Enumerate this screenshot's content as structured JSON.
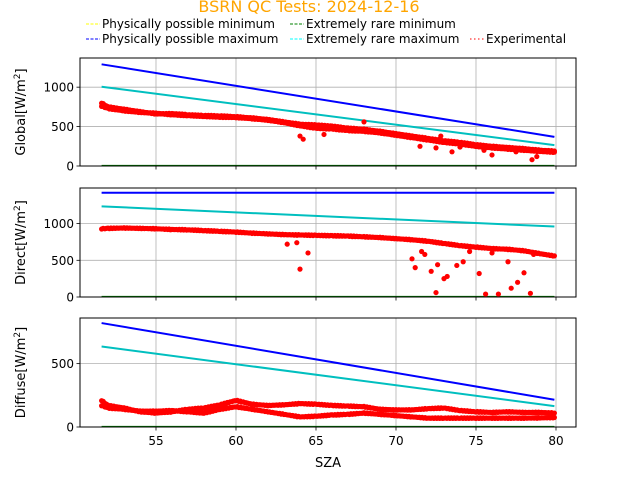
{
  "chart_data": [
    {
      "type": "line",
      "panel": "global",
      "title": "BSRN QC Tests: 2024-12-16",
      "xlabel": "",
      "ylabel": "Global[W/m²]",
      "ylabel_main": "Global[W/m",
      "xlim": [
        50.25,
        81.25
      ],
      "ylim": [
        0,
        1370
      ],
      "yticks": [
        0,
        500,
        1000
      ],
      "ytick_labels": [
        "0",
        "500",
        "1000"
      ],
      "xticks": [
        55,
        60,
        65,
        70,
        75,
        80
      ],
      "grid": true,
      "series": [
        {
          "name": "Physically possible minimum",
          "style": "line",
          "color": "#ffff00",
          "x": [
            51.6,
            79.9
          ],
          "y": [
            -4,
            -4
          ]
        },
        {
          "name": "Extremely rare minimum",
          "style": "line",
          "color": "#008000",
          "x": [
            51.6,
            79.9
          ],
          "y": [
            2,
            2
          ]
        },
        {
          "name": "Physically possible maximum",
          "style": "line",
          "color": "#0000ff",
          "x": [
            51.6,
            79.9
          ],
          "y": [
            1290,
            370
          ]
        },
        {
          "name": "Extremely rare maximum",
          "style": "line",
          "color": "#00bfbf",
          "x": [
            51.6,
            79.9
          ],
          "y": [
            1005,
            265
          ]
        },
        {
          "name": "Experimental",
          "style": "dots",
          "color": "#ff0000",
          "bands": [
            {
              "x": [
                51.6,
                52,
                53,
                54,
                55,
                56,
                57,
                58,
                59,
                60,
                61,
                62,
                63,
                64,
                65,
                66,
                67,
                68,
                69,
                70,
                71,
                72,
                73,
                74,
                75,
                76,
                77,
                78,
                79,
                79.9
              ],
              "y": [
                800,
                750,
                720,
                690,
                660,
                665,
                650,
                640,
                635,
                625,
                610,
                590,
                560,
                530,
                520,
                505,
                480,
                465,
                440,
                410,
                380,
                350,
                320,
                300,
                270,
                250,
                235,
                220,
                200,
                190
              ]
            },
            {
              "x": [
                51.6,
                52,
                53,
                54,
                55,
                56,
                57,
                58,
                59,
                60,
                61,
                62,
                63,
                64,
                65,
                66,
                67,
                68,
                69,
                70,
                71,
                72,
                73,
                74,
                75,
                76,
                77,
                78,
                79,
                79.9
              ],
              "y": [
                760,
                730,
                700,
                680,
                670,
                650,
                640,
                630,
                620,
                615,
                600,
                580,
                550,
                510,
                480,
                470,
                450,
                440,
                420,
                390,
                360,
                330,
                300,
                280,
                250,
                230,
                215,
                200,
                185,
                175
              ]
            }
          ],
          "outliers": [
            [
              64.0,
              380
            ],
            [
              64.2,
              340
            ],
            [
              65.5,
              400
            ],
            [
              68,
              560
            ],
            [
              71.5,
              250
            ],
            [
              72.5,
              230
            ],
            [
              72.8,
              380
            ],
            [
              73.5,
              180
            ],
            [
              74,
              240
            ],
            [
              75.5,
              200
            ],
            [
              76,
              140
            ],
            [
              77.5,
              180
            ],
            [
              78.5,
              80
            ],
            [
              78.8,
              120
            ]
          ]
        }
      ]
    },
    {
      "type": "line",
      "panel": "direct",
      "ylabel": "Direct[W/m²]",
      "ylabel_main": "Direct[W/m",
      "xlim": [
        50.25,
        81.25
      ],
      "ylim": [
        0,
        1485
      ],
      "yticks": [
        0,
        500,
        1000
      ],
      "ytick_labels": [
        "0",
        "500",
        "1000"
      ],
      "xticks": [
        55,
        60,
        65,
        70,
        75,
        80
      ],
      "grid": true,
      "series": [
        {
          "name": "Physically possible minimum",
          "style": "line",
          "color": "#ffff00",
          "x": [
            51.6,
            79.9
          ],
          "y": [
            -4,
            -4
          ]
        },
        {
          "name": "Extremely rare minimum",
          "style": "line",
          "color": "#008000",
          "x": [
            51.6,
            79.9
          ],
          "y": [
            2,
            2
          ]
        },
        {
          "name": "Physically possible maximum",
          "style": "line",
          "color": "#0000ff",
          "x": [
            51.6,
            79.9
          ],
          "y": [
            1420,
            1420
          ]
        },
        {
          "name": "Extremely rare maximum",
          "style": "line",
          "color": "#00bfbf",
          "x": [
            51.6,
            79.9
          ],
          "y": [
            1235,
            960
          ]
        },
        {
          "name": "Experimental",
          "style": "dots",
          "color": "#ff0000",
          "bands": [
            {
              "x": [
                51.6,
                52,
                53,
                54,
                55,
                56,
                57,
                58,
                59,
                60,
                61,
                62,
                63,
                64,
                65,
                66,
                67,
                68,
                69,
                70,
                71,
                72,
                73,
                74,
                75,
                76,
                77,
                78,
                79,
                79.9
              ],
              "y": [
                930,
                935,
                940,
                935,
                930,
                920,
                915,
                905,
                895,
                885,
                870,
                860,
                850,
                845,
                840,
                835,
                830,
                820,
                810,
                795,
                780,
                760,
                730,
                700,
                680,
                660,
                650,
                630,
                590,
                560
              ]
            }
          ],
          "outliers": [
            [
              63.2,
              720
            ],
            [
              63.8,
              740
            ],
            [
              64.0,
              380
            ],
            [
              64.5,
              600
            ],
            [
              71.0,
              520
            ],
            [
              71.2,
              400
            ],
            [
              71.6,
              620
            ],
            [
              71.8,
              580
            ],
            [
              72.2,
              350
            ],
            [
              72.5,
              60
            ],
            [
              72.6,
              440
            ],
            [
              73.0,
              250
            ],
            [
              73.2,
              280
            ],
            [
              73.8,
              430
            ],
            [
              74.2,
              480
            ],
            [
              74.6,
              620
            ],
            [
              75.2,
              320
            ],
            [
              75.6,
              40
            ],
            [
              76.0,
              600
            ],
            [
              76.4,
              40
            ],
            [
              77.0,
              480
            ],
            [
              77.2,
              120
            ],
            [
              77.6,
              200
            ],
            [
              78.0,
              330
            ],
            [
              78.4,
              50
            ],
            [
              78.6,
              580
            ]
          ]
        }
      ]
    },
    {
      "type": "line",
      "panel": "diffuse",
      "ylabel": "Diffuse[W/m²]",
      "ylabel_main": "Diffuse[W/m",
      "xlabel": "SZA",
      "xlim": [
        50.25,
        81.25
      ],
      "ylim": [
        0,
        860
      ],
      "yticks": [
        0,
        500
      ],
      "ytick_labels": [
        "0",
        "500"
      ],
      "xticks": [
        55,
        60,
        65,
        70,
        75,
        80
      ],
      "xtick_labels": [
        "55",
        "60",
        "65",
        "70",
        "75",
        "80"
      ],
      "grid": true,
      "series": [
        {
          "name": "Physically possible minimum",
          "style": "line",
          "color": "#ffff00",
          "x": [
            51.6,
            79.9
          ],
          "y": [
            -3,
            -3
          ]
        },
        {
          "name": "Extremely rare minimum",
          "style": "line",
          "color": "#008000",
          "x": [
            51.6,
            79.9
          ],
          "y": [
            1,
            1
          ]
        },
        {
          "name": "Physically possible maximum",
          "style": "line",
          "color": "#0000ff",
          "x": [
            51.6,
            79.9
          ],
          "y": [
            820,
            215
          ]
        },
        {
          "name": "Extremely rare maximum",
          "style": "line",
          "color": "#00bfbf",
          "x": [
            51.6,
            79.9
          ],
          "y": [
            635,
            165
          ]
        },
        {
          "name": "Experimental",
          "style": "dots",
          "color": "#ff0000",
          "bands": [
            {
              "x": [
                51.6,
                52,
                53,
                54,
                55,
                56,
                57,
                58,
                59,
                60,
                61,
                62,
                63,
                64,
                65,
                66,
                67,
                68,
                69,
                70,
                71,
                72,
                73,
                74,
                75,
                76,
                77,
                78,
                79,
                79.9
              ],
              "y": [
                210,
                170,
                150,
                120,
                110,
                120,
                140,
                150,
                175,
                210,
                180,
                170,
                175,
                185,
                180,
                170,
                165,
                160,
                140,
                135,
                135,
                145,
                150,
                130,
                120,
                115,
                120,
                115,
                115,
                110
              ]
            },
            {
              "x": [
                51.6,
                52,
                53,
                54,
                55,
                56,
                57,
                58,
                59,
                60,
                61,
                62,
                63,
                64,
                65,
                66,
                67,
                68,
                69,
                70,
                71,
                72,
                73,
                74,
                75,
                76,
                77,
                78,
                79,
                79.9
              ],
              "y": [
                170,
                150,
                140,
                125,
                125,
                130,
                120,
                110,
                140,
                160,
                140,
                120,
                100,
                80,
                85,
                95,
                100,
                110,
                100,
                90,
                80,
                70,
                70,
                70,
                70,
                70,
                70,
                70,
                72,
                75
              ]
            }
          ],
          "outliers": []
        }
      ]
    }
  ],
  "title": "BSRN QC Tests: 2024-12-16",
  "legend": {
    "placement": "top",
    "entries": [
      {
        "label": "Physically possible minimum",
        "color": "#ffff00",
        "style": "dashed"
      },
      {
        "label": "Extremely rare minimum",
        "color": "#008000",
        "style": "dashed"
      },
      {
        "label": "Physically possible maximum",
        "color": "#0000ff",
        "style": "dashed"
      },
      {
        "label": "Extremely rare maximum",
        "color": "#00ffff",
        "style": "dashed"
      },
      {
        "label": "Experimental",
        "color": "#ff0000",
        "style": "dotted"
      }
    ]
  },
  "ylabel_unit_sup": "2",
  "ylabel_close": "]"
}
